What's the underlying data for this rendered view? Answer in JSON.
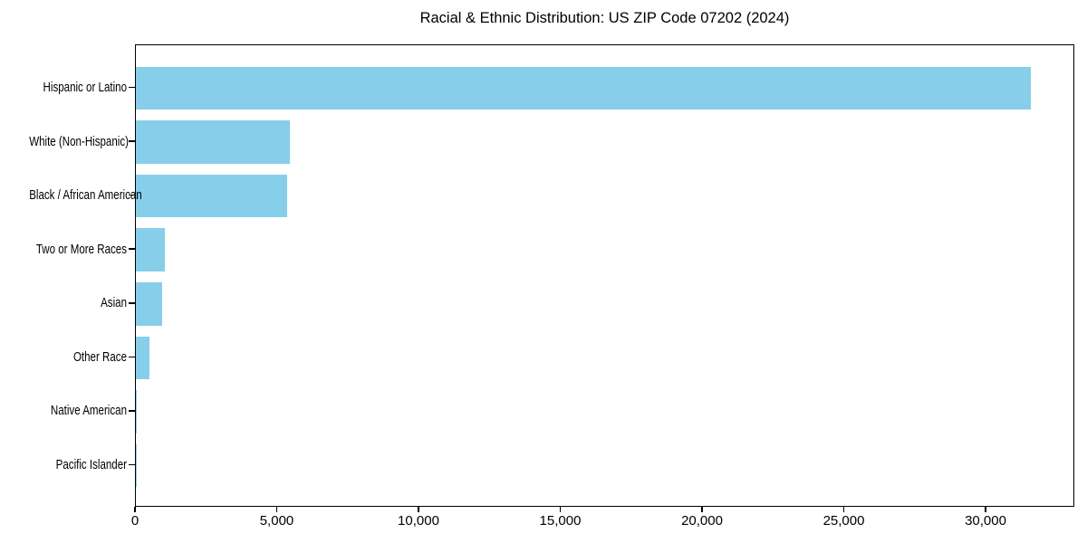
{
  "chart_data": {
    "type": "bar",
    "orientation": "horizontal",
    "title": "Racial & Ethnic Distribution: US ZIP Code 07202 (2024)",
    "categories": [
      "Hispanic or Latino",
      "White (Non-Hispanic)",
      "Black / African American",
      "Two or More Races",
      "Asian",
      "Other Race",
      "Native American",
      "Pacific Islander"
    ],
    "values": [
      31550,
      5430,
      5340,
      1020,
      930,
      480,
      30,
      10
    ],
    "xlabel": "",
    "ylabel": "",
    "xlim": [
      0,
      33130
    ],
    "xticks": [
      0,
      5000,
      10000,
      15000,
      20000,
      25000,
      30000
    ],
    "xtick_labels": [
      "0",
      "5,000",
      "10,000",
      "15,000",
      "20,000",
      "25,000",
      "30,000"
    ],
    "bar_color": "#87ceeb",
    "axis_color": "#000000",
    "background_color": "#ffffff",
    "grid": false,
    "legend": null
  }
}
